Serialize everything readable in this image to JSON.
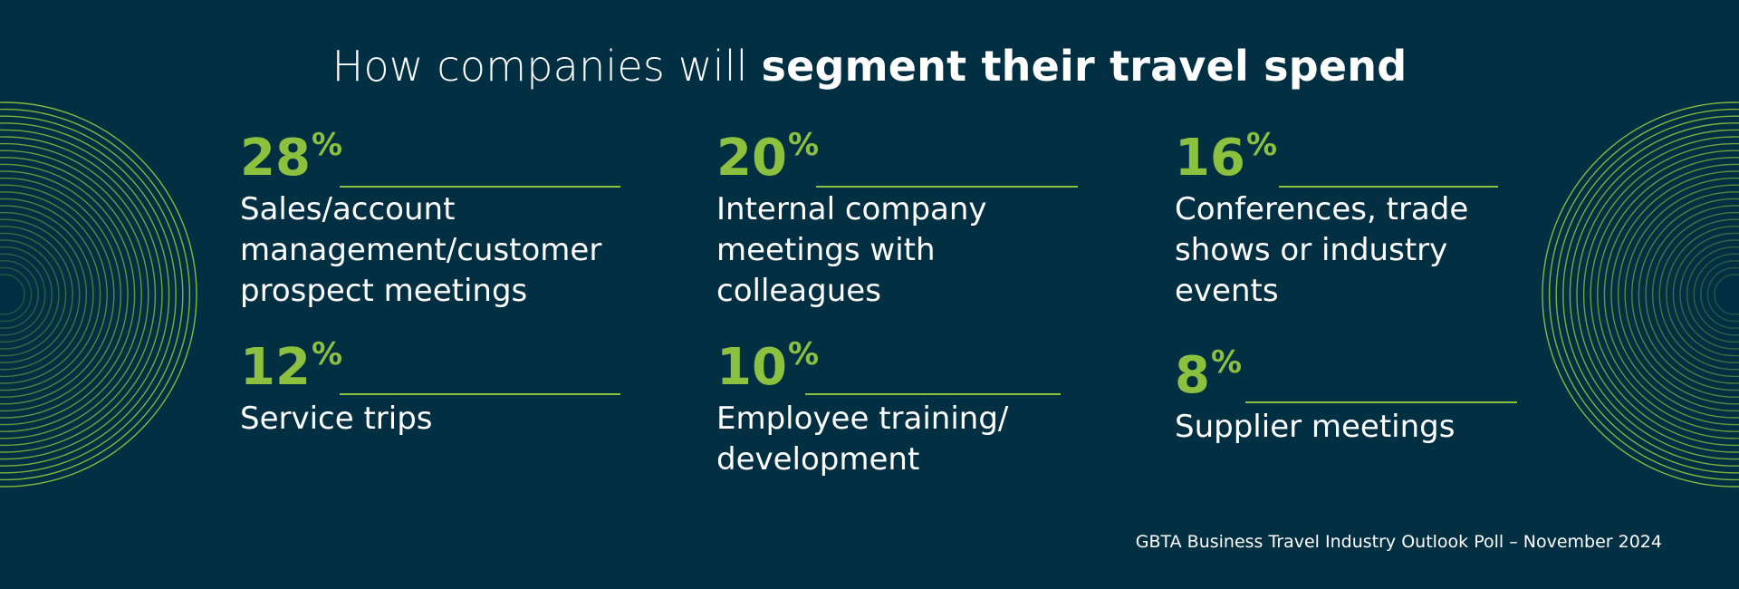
{
  "header": {
    "title_light": "How companies will ",
    "title_bold": "segment their travel spend"
  },
  "stats": [
    {
      "value": "28",
      "unit": "%",
      "label": "Sales/account\nmanagement/customer\nprospect meetings"
    },
    {
      "value": "20",
      "unit": "%",
      "label": "Internal company\nmeetings with\ncolleagues"
    },
    {
      "value": "16",
      "unit": "%",
      "label": "Conferences, trade\nshows or industry\nevents"
    },
    {
      "value": "12",
      "unit": "%",
      "label": "Service trips"
    },
    {
      "value": "10",
      "unit": "%",
      "label": "Employee training/\ndevelopment"
    },
    {
      "value": "8",
      "unit": "%",
      "label": "Supplier meetings"
    }
  ],
  "chart_data": {
    "type": "table",
    "title": "How companies will segment their travel spend",
    "categories": [
      "Sales/account management/customer prospect meetings",
      "Internal company meetings with colleagues",
      "Conferences, trade shows or industry events",
      "Service trips",
      "Employee training/development",
      "Supplier meetings"
    ],
    "values": [
      28,
      20,
      16,
      12,
      10,
      8
    ],
    "unit": "%"
  },
  "footer": {
    "source": "GBTA Business Travel Industry Outlook Poll – November 2024"
  },
  "colors": {
    "background": "#032f43",
    "accent": "#8cc03f",
    "text": "#ffffff"
  }
}
